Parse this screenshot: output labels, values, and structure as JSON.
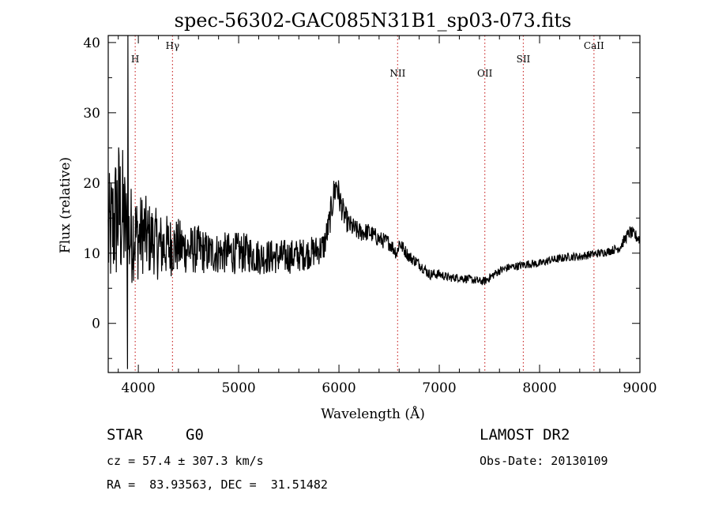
{
  "chart_data": {
    "type": "line",
    "title": "spec-56302-GAC085N31B1_sp03-073.fits",
    "xlabel": "Wavelength (Å)",
    "ylabel": "Flux (relative)",
    "xlim": [
      3700,
      9000
    ],
    "ylim": [
      -7,
      41
    ],
    "x_ticks": [
      4000,
      5000,
      6000,
      7000,
      8000,
      9000
    ],
    "y_ticks": [
      0,
      10,
      20,
      30,
      40
    ],
    "grid": false,
    "line_color": "#000000",
    "marker_color": "#cc3333",
    "lines": [
      {
        "label": "H",
        "wavelength": 3969
      },
      {
        "label": "Hγ",
        "wavelength": 4341
      },
      {
        "label": "NII",
        "wavelength": 6585
      },
      {
        "label": "OII",
        "wavelength": 7454
      },
      {
        "label": "SII",
        "wavelength": 7838
      },
      {
        "label": "CaII",
        "wavelength": 8542
      }
    ],
    "series": [
      {
        "x": [
          3700,
          3750,
          3800,
          3850,
          3880,
          3900,
          3950,
          4000,
          4050,
          4100,
          4150,
          4200,
          4300,
          4400,
          4500,
          4600,
          4700,
          4800,
          4900,
          5000,
          5100,
          5200,
          5300,
          5400,
          5500,
          5600,
          5700,
          5800,
          5850,
          5900,
          5950,
          5980,
          6000,
          6050,
          6100,
          6200,
          6300,
          6400,
          6500,
          6580,
          6600,
          6700,
          6800,
          6900,
          7000,
          7100,
          7200,
          7300,
          7400,
          7450,
          7500,
          7600,
          7700,
          7800,
          7900,
          8000,
          8100,
          8200,
          8300,
          8400,
          8500,
          8600,
          8700,
          8800,
          8850,
          8900,
          8950,
          9000
        ],
        "y": [
          12,
          14,
          16,
          15,
          13,
          12,
          13,
          12,
          13,
          12,
          12,
          11,
          11,
          11,
          10.5,
          10.5,
          10,
          10,
          10,
          10,
          10,
          9.5,
          9.5,
          9.5,
          9.5,
          9.7,
          10,
          10.5,
          11,
          14,
          18.5,
          20,
          18,
          15.5,
          14,
          13,
          13,
          12,
          11.5,
          10,
          11.5,
          9.5,
          8.5,
          7,
          7,
          6.5,
          6.5,
          6.3,
          6,
          6,
          6.5,
          7.5,
          8,
          8.2,
          8.5,
          8.5,
          9,
          9.2,
          9.5,
          9.5,
          9.8,
          10,
          10.3,
          10.8,
          12,
          13,
          12.5,
          12
        ],
        "noise": [
          9,
          9,
          11,
          10,
          8,
          8,
          7,
          6,
          6,
          5.5,
          5,
          5,
          4.5,
          4,
          3.5,
          3.5,
          3,
          3,
          3,
          3,
          2.8,
          2.6,
          2.5,
          2.5,
          2.5,
          2.4,
          2.3,
          2.2,
          2.2,
          2.2,
          2.5,
          2.5,
          2.2,
          1.8,
          1.6,
          1.4,
          1.3,
          1.2,
          1.1,
          1.1,
          1,
          0.9,
          0.8,
          0.8,
          0.7,
          0.6,
          0.6,
          0.6,
          0.6,
          0.6,
          0.6,
          0.6,
          0.6,
          0.6,
          0.6,
          0.6,
          0.6,
          0.6,
          0.6,
          0.6,
          0.6,
          0.6,
          0.6,
          0.7,
          0.8,
          0.9,
          0.9,
          0.9
        ]
      }
    ]
  },
  "info": {
    "object_class": "STAR",
    "subclass": "G0",
    "survey": "LAMOST DR2",
    "redshift": "cz = 57.4 ± 307.3 km/s",
    "obs_date": "Obs-Date: 20130109",
    "coords": "RA =  83.93563, DEC =  31.51482"
  }
}
